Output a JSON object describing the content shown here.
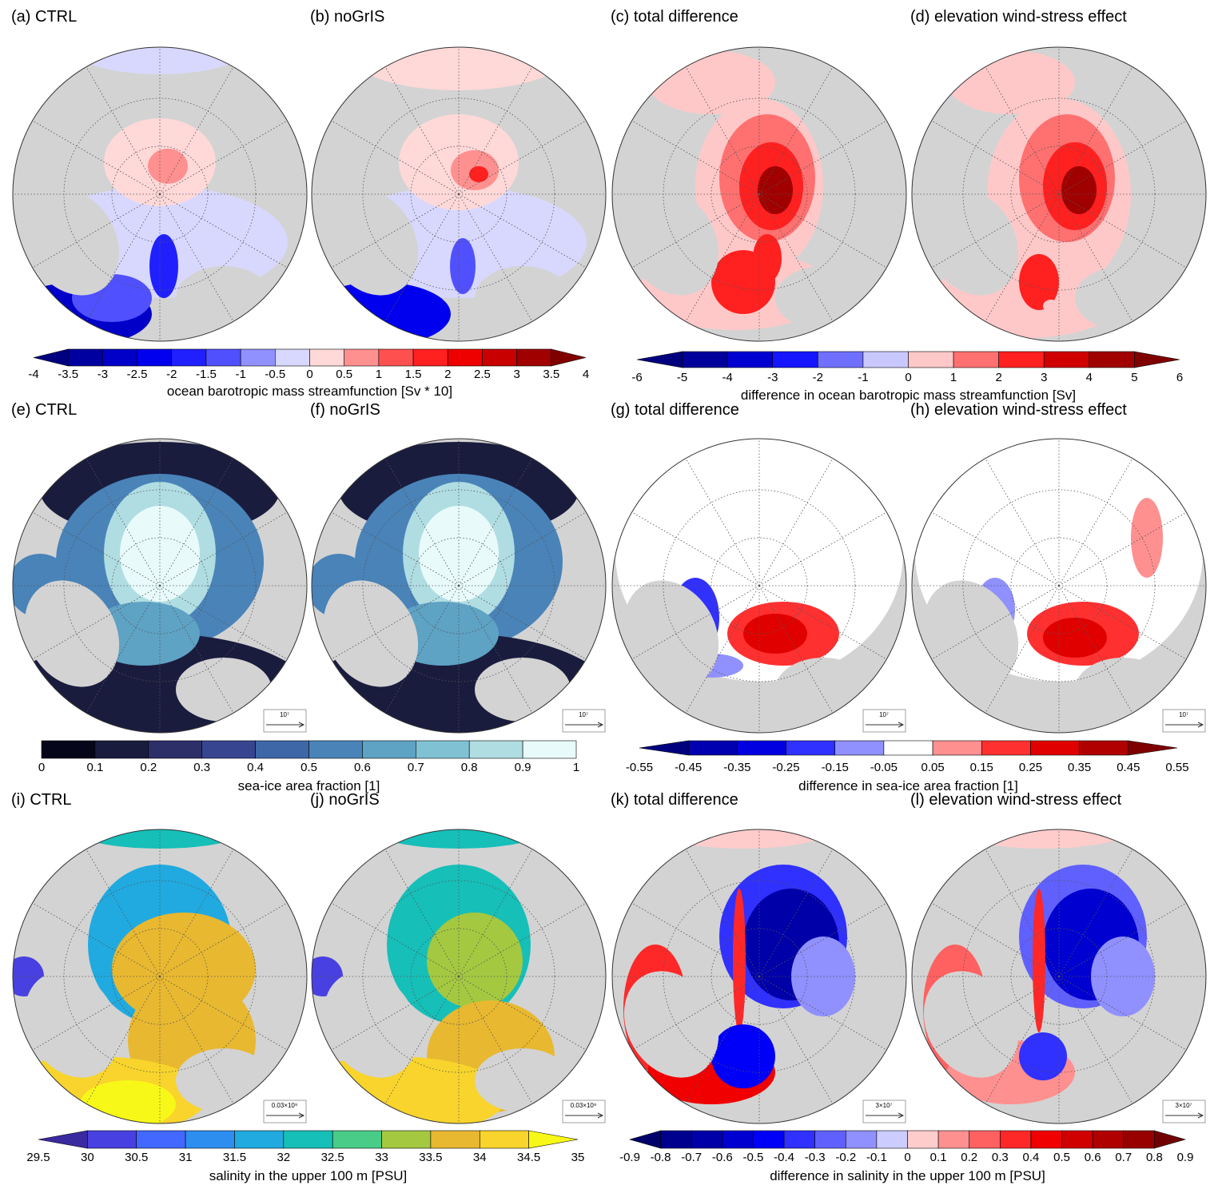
{
  "panels": [
    {
      "id": "a",
      "label": "(a) CTRL"
    },
    {
      "id": "b",
      "label": "(b) noGrIS"
    },
    {
      "id": "c",
      "label": "(c) total difference"
    },
    {
      "id": "d",
      "label": "(d) elevation wind-stress effect"
    },
    {
      "id": "e",
      "label": "(e) CTRL",
      "vector_key": "10⁷"
    },
    {
      "id": "f",
      "label": "(f) noGrIS",
      "vector_key": "10⁷"
    },
    {
      "id": "g",
      "label": "(g) total difference",
      "vector_key": "10⁷"
    },
    {
      "id": "h",
      "label": "(h) elevation wind-stress effect",
      "vector_key": "10⁷"
    },
    {
      "id": "i",
      "label": "(i) CTRL",
      "vector_key": "0.03×10⁹"
    },
    {
      "id": "j",
      "label": "(j) noGrIS",
      "vector_key": "0.03×10⁹"
    },
    {
      "id": "k",
      "label": "(k) total difference",
      "vector_key": "3×10⁷"
    },
    {
      "id": "l",
      "label": "(l) elevation wind-stress effect",
      "vector_key": "3×10⁷"
    }
  ],
  "colorbars": [
    {
      "title": "ocean barotropic mass streamfunction [Sv * 10]",
      "ticks": [
        "-4",
        "-3.5",
        "-3",
        "-2.5",
        "-2",
        "-1.5",
        "-1",
        "-0.5",
        "0",
        "0.5",
        "1",
        "1.5",
        "2",
        "2.5",
        "3",
        "3.5",
        "4"
      ],
      "extend": "both",
      "colors": [
        "#000080",
        "#0000a0",
        "#0000c8",
        "#0000ee",
        "#2020ff",
        "#5050ff",
        "#9090ff",
        "#d8d8ff",
        "#ffd8d8",
        "#ff9090",
        "#ff5050",
        "#ff2020",
        "#ee0000",
        "#c80000",
        "#a00000",
        "#800000"
      ]
    },
    {
      "title": "difference in ocean barotropic mass streamfunction [Sv]",
      "ticks": [
        "-6",
        "-5",
        "-4",
        "-3",
        "-2",
        "-1",
        "0",
        "1",
        "2",
        "3",
        "4",
        "5",
        "6"
      ],
      "extend": "both",
      "colors": [
        "#00007f",
        "#00009a",
        "#0000d0",
        "#1515ff",
        "#7070ff",
        "#c8c8ff",
        "#ffc8c8",
        "#ff7070",
        "#ff2020",
        "#d00000",
        "#a00000",
        "#7f0000"
      ]
    },
    {
      "title": "sea-ice area fraction [1]",
      "ticks": [
        "0",
        "0.1",
        "0.2",
        "0.3",
        "0.4",
        "0.5",
        "0.6",
        "0.7",
        "0.8",
        "0.9",
        "1"
      ],
      "extend": "none",
      "colors": [
        "#05061a",
        "#1a1c3e",
        "#2c2f68",
        "#374590",
        "#3e67a8",
        "#4983b8",
        "#5ea2c4",
        "#80c2d4",
        "#b0dde2",
        "#e8fafa"
      ]
    },
    {
      "title": "difference in sea-ice area fraction [1]",
      "ticks": [
        "-0.55",
        "-0.45",
        "-0.35",
        "-0.25",
        "-0.15",
        "-0.05",
        "0.05",
        "0.15",
        "0.25",
        "0.35",
        "0.45",
        "0.55"
      ],
      "extend": "both",
      "colors": [
        "#00007f",
        "#0000b0",
        "#0000e0",
        "#3030ff",
        "#9090ff",
        "#ffffff",
        "#ff9090",
        "#ff3030",
        "#e00000",
        "#b00000",
        "#7f0000"
      ]
    },
    {
      "title": "salinity in the upper 100 m [PSU]",
      "ticks": [
        "29.5",
        "30",
        "30.5",
        "31",
        "31.5",
        "32",
        "32.5",
        "33",
        "33.5",
        "34",
        "34.5",
        "35"
      ],
      "extend": "both",
      "colors": [
        "#3a2aa0",
        "#4840e0",
        "#4268ff",
        "#2e8ef0",
        "#20aae0",
        "#16bfb8",
        "#48cc88",
        "#a4c840",
        "#e8b830",
        "#f8d42c",
        "#f8f818"
      ]
    },
    {
      "title": "difference in salinity in the upper 100 m [PSU]",
      "ticks": [
        "-0.9",
        "-0.8",
        "-0.7",
        "-0.6",
        "-0.5",
        "-0.4",
        "-0.3",
        "-0.2",
        "-0.1",
        "0",
        "0.1",
        "0.2",
        "0.3",
        "0.4",
        "0.5",
        "0.6",
        "0.7",
        "0.8",
        "0.9"
      ],
      "extend": "both",
      "colors": [
        "#00006a",
        "#00008f",
        "#0000a8",
        "#0000d0",
        "#0000f8",
        "#3030ff",
        "#6060ff",
        "#9090ff",
        "#ccccff",
        "#ffcccc",
        "#ff9090",
        "#ff6060",
        "#ff2828",
        "#f00000",
        "#d00000",
        "#b00000",
        "#980000",
        "#700000"
      ]
    }
  ],
  "land_color": "#d3d3d3"
}
